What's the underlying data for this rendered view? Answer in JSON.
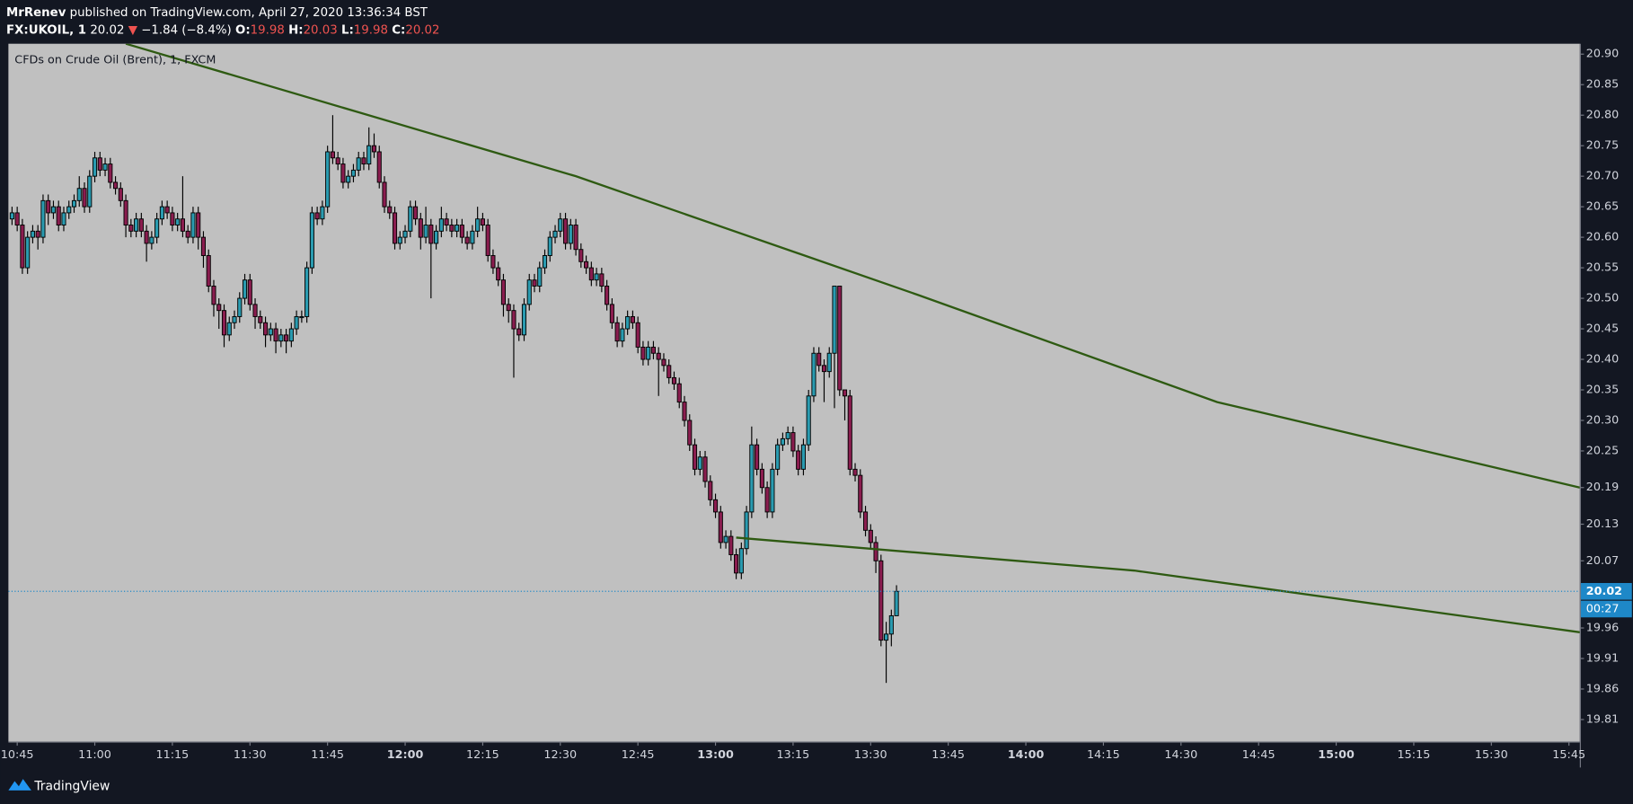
{
  "header": {
    "author": "MrRenev",
    "published": "published on TradingView.com, April 27, 2020 13:36:34 BST",
    "symbol": "FX:UKOIL, 1",
    "last": "20.02",
    "arrow": "▼",
    "change": "−1.84 (−8.4%)",
    "ohlc": [
      {
        "label": "O:",
        "value": "19.98"
      },
      {
        "label": "H:",
        "value": "20.03"
      },
      {
        "label": "L:",
        "value": "19.98"
      },
      {
        "label": "C:",
        "value": "20.02"
      }
    ]
  },
  "footer": {
    "brand": "TradingView"
  },
  "chart_data": {
    "type": "candlestick",
    "title": "CFDs on Crude Oil (Brent), 1, FXCM",
    "up_color": "#2a9bb0",
    "down_color": "#8a1d4f",
    "price_line_color": "#1e88c8",
    "xlim": [
      643.3,
      947.1
    ],
    "xticks": [
      {
        "value": 645,
        "label": "10:45"
      },
      {
        "value": 660,
        "label": "11:00"
      },
      {
        "value": 675,
        "label": "11:15"
      },
      {
        "value": 690,
        "label": "11:30"
      },
      {
        "value": 705,
        "label": "11:45"
      },
      {
        "value": 720,
        "label": "12:00"
      },
      {
        "value": 735,
        "label": "12:15"
      },
      {
        "value": 750,
        "label": "12:30"
      },
      {
        "value": 765,
        "label": "12:45"
      },
      {
        "value": 780,
        "label": "13:00"
      },
      {
        "value": 795,
        "label": "13:15"
      },
      {
        "value": 810,
        "label": "13:30"
      },
      {
        "value": 825,
        "label": "13:45"
      },
      {
        "value": 840,
        "label": "14:00"
      },
      {
        "value": 855,
        "label": "14:15"
      },
      {
        "value": 870,
        "label": "14:30"
      },
      {
        "value": 885,
        "label": "14:45"
      },
      {
        "value": 900,
        "label": "15:00"
      },
      {
        "value": 915,
        "label": "15:15"
      },
      {
        "value": 930,
        "label": "15:30"
      },
      {
        "value": 945,
        "label": "15:45"
      }
    ],
    "ylim": [
      19.774,
      20.917
    ],
    "yticks": [
      {
        "value": 20.9,
        "label": "20.90"
      },
      20.85,
      {
        "value": 20.8,
        "label": "20.80"
      },
      20.75,
      {
        "value": 20.7,
        "label": "20.70"
      },
      20.65,
      {
        "value": 20.6,
        "label": "20.60"
      },
      20.55,
      {
        "value": 20.5,
        "label": "20.50"
      },
      20.45,
      {
        "value": 20.4,
        "label": "20.40"
      },
      20.35,
      {
        "value": 20.3,
        "label": "20.30"
      },
      20.25,
      20.19,
      20.13,
      20.07,
      19.96,
      19.91,
      19.86,
      19.81
    ],
    "last_price": 20.02,
    "countdown": "00:27",
    "candles": [
      [
        644,
        20.63,
        20.65,
        20.62,
        20.64
      ],
      [
        645,
        20.64,
        20.65,
        20.61,
        20.62
      ],
      [
        646,
        20.62,
        20.63,
        20.54,
        20.55
      ],
      [
        647,
        20.55,
        20.61,
        20.54,
        20.6
      ],
      [
        648,
        20.6,
        20.62,
        20.59,
        20.61
      ],
      [
        649,
        20.61,
        20.62,
        20.58,
        20.6
      ],
      [
        650,
        20.6,
        20.67,
        20.59,
        20.66
      ],
      [
        651,
        20.66,
        20.67,
        20.62,
        20.64
      ],
      [
        652,
        20.64,
        20.66,
        20.63,
        20.65
      ],
      [
        653,
        20.65,
        20.66,
        20.61,
        20.62
      ],
      [
        654,
        20.62,
        20.65,
        20.61,
        20.64
      ],
      [
        655,
        20.64,
        20.66,
        20.63,
        20.65
      ],
      [
        656,
        20.65,
        20.67,
        20.64,
        20.66
      ],
      [
        657,
        20.66,
        20.7,
        20.65,
        20.68
      ],
      [
        658,
        20.68,
        20.69,
        20.64,
        20.65
      ],
      [
        659,
        20.65,
        20.71,
        20.64,
        20.7
      ],
      [
        660,
        20.7,
        20.74,
        20.69,
        20.73
      ],
      [
        661,
        20.73,
        20.74,
        20.7,
        20.71
      ],
      [
        662,
        20.71,
        20.73,
        20.7,
        20.72
      ],
      [
        663,
        20.72,
        20.73,
        20.68,
        20.69
      ],
      [
        664,
        20.69,
        20.7,
        20.67,
        20.68
      ],
      [
        665,
        20.68,
        20.69,
        20.65,
        20.66
      ],
      [
        666,
        20.66,
        20.67,
        20.6,
        20.62
      ],
      [
        667,
        20.62,
        20.63,
        20.6,
        20.61
      ],
      [
        668,
        20.61,
        20.64,
        20.6,
        20.63
      ],
      [
        669,
        20.63,
        20.64,
        20.6,
        20.61
      ],
      [
        670,
        20.61,
        20.62,
        20.56,
        20.59
      ],
      [
        671,
        20.59,
        20.61,
        20.58,
        20.6
      ],
      [
        672,
        20.6,
        20.64,
        20.59,
        20.63
      ],
      [
        673,
        20.63,
        20.66,
        20.62,
        20.65
      ],
      [
        674,
        20.65,
        20.66,
        20.63,
        20.64
      ],
      [
        675,
        20.64,
        20.65,
        20.61,
        20.62
      ],
      [
        676,
        20.62,
        20.64,
        20.61,
        20.63
      ],
      [
        677,
        20.63,
        20.7,
        20.6,
        20.61
      ],
      [
        678,
        20.61,
        20.62,
        20.59,
        20.6
      ],
      [
        679,
        20.6,
        20.65,
        20.59,
        20.64
      ],
      [
        680,
        20.64,
        20.65,
        20.58,
        20.6
      ],
      [
        681,
        20.6,
        20.61,
        20.55,
        20.57
      ],
      [
        682,
        20.57,
        20.58,
        20.51,
        20.52
      ],
      [
        683,
        20.52,
        20.53,
        20.47,
        20.49
      ],
      [
        684,
        20.49,
        20.5,
        20.45,
        20.48
      ],
      [
        685,
        20.48,
        20.49,
        20.42,
        20.44
      ],
      [
        686,
        20.44,
        20.47,
        20.43,
        20.46
      ],
      [
        687,
        20.46,
        20.48,
        20.45,
        20.47
      ],
      [
        688,
        20.47,
        20.51,
        20.46,
        20.5
      ],
      [
        689,
        20.5,
        20.54,
        20.49,
        20.53
      ],
      [
        690,
        20.53,
        20.54,
        20.48,
        20.49
      ],
      [
        691,
        20.49,
        20.5,
        20.45,
        20.47
      ],
      [
        692,
        20.47,
        20.48,
        20.45,
        20.46
      ],
      [
        693,
        20.46,
        20.47,
        20.42,
        20.44
      ],
      [
        694,
        20.44,
        20.46,
        20.43,
        20.45
      ],
      [
        695,
        20.45,
        20.46,
        20.41,
        20.43
      ],
      [
        696,
        20.43,
        20.45,
        20.42,
        20.44
      ],
      [
        697,
        20.44,
        20.45,
        20.41,
        20.43
      ],
      [
        698,
        20.43,
        20.46,
        20.42,
        20.45
      ],
      [
        699,
        20.45,
        20.48,
        20.44,
        20.47
      ],
      [
        700,
        20.47,
        20.48,
        20.46,
        20.47
      ],
      [
        701,
        20.47,
        20.56,
        20.46,
        20.55
      ],
      [
        702,
        20.55,
        20.65,
        20.54,
        20.64
      ],
      [
        703,
        20.64,
        20.65,
        20.62,
        20.63
      ],
      [
        704,
        20.63,
        20.66,
        20.62,
        20.65
      ],
      [
        705,
        20.65,
        20.75,
        20.64,
        20.74
      ],
      [
        706,
        20.74,
        20.8,
        20.72,
        20.73
      ],
      [
        707,
        20.73,
        20.74,
        20.71,
        20.72
      ],
      [
        708,
        20.72,
        20.73,
        20.68,
        20.69
      ],
      [
        709,
        20.69,
        20.71,
        20.68,
        20.7
      ],
      [
        710,
        20.7,
        20.72,
        20.69,
        20.71
      ],
      [
        711,
        20.71,
        20.74,
        20.7,
        20.73
      ],
      [
        712,
        20.73,
        20.74,
        20.71,
        20.72
      ],
      [
        713,
        20.72,
        20.78,
        20.71,
        20.75
      ],
      [
        714,
        20.75,
        20.77,
        20.73,
        20.74
      ],
      [
        715,
        20.74,
        20.75,
        20.68,
        20.69
      ],
      [
        716,
        20.69,
        20.7,
        20.64,
        20.65
      ],
      [
        717,
        20.65,
        20.66,
        20.63,
        20.64
      ],
      [
        718,
        20.64,
        20.65,
        20.58,
        20.59
      ],
      [
        719,
        20.59,
        20.61,
        20.58,
        20.6
      ],
      [
        720,
        20.6,
        20.62,
        20.59,
        20.61
      ],
      [
        721,
        20.61,
        20.66,
        20.6,
        20.65
      ],
      [
        722,
        20.65,
        20.66,
        20.62,
        20.63
      ],
      [
        723,
        20.63,
        20.64,
        20.58,
        20.6
      ],
      [
        724,
        20.6,
        20.65,
        20.59,
        20.62
      ],
      [
        725,
        20.62,
        20.63,
        20.5,
        20.59
      ],
      [
        726,
        20.59,
        20.62,
        20.58,
        20.61
      ],
      [
        727,
        20.61,
        20.65,
        20.6,
        20.63
      ],
      [
        728,
        20.63,
        20.64,
        20.61,
        20.62
      ],
      [
        729,
        20.62,
        20.63,
        20.6,
        20.61
      ],
      [
        730,
        20.61,
        20.63,
        20.6,
        20.62
      ],
      [
        731,
        20.62,
        20.63,
        20.59,
        20.6
      ],
      [
        732,
        20.6,
        20.61,
        20.58,
        20.59
      ],
      [
        733,
        20.59,
        20.62,
        20.58,
        20.61
      ],
      [
        734,
        20.61,
        20.65,
        20.6,
        20.63
      ],
      [
        735,
        20.63,
        20.64,
        20.61,
        20.62
      ],
      [
        736,
        20.62,
        20.63,
        20.56,
        20.57
      ],
      [
        737,
        20.57,
        20.58,
        20.54,
        20.55
      ],
      [
        738,
        20.55,
        20.56,
        20.52,
        20.53
      ],
      [
        739,
        20.53,
        20.54,
        20.47,
        20.49
      ],
      [
        740,
        20.49,
        20.5,
        20.46,
        20.48
      ],
      [
        741,
        20.48,
        20.49,
        20.37,
        20.45
      ],
      [
        742,
        20.45,
        20.46,
        20.43,
        20.44
      ],
      [
        743,
        20.44,
        20.5,
        20.43,
        20.49
      ],
      [
        744,
        20.49,
        20.54,
        20.48,
        20.53
      ],
      [
        745,
        20.53,
        20.54,
        20.51,
        20.52
      ],
      [
        746,
        20.52,
        20.56,
        20.51,
        20.55
      ],
      [
        747,
        20.55,
        20.58,
        20.54,
        20.57
      ],
      [
        748,
        20.57,
        20.61,
        20.56,
        20.6
      ],
      [
        749,
        20.6,
        20.62,
        20.59,
        20.61
      ],
      [
        750,
        20.61,
        20.64,
        20.6,
        20.63
      ],
      [
        751,
        20.63,
        20.64,
        20.58,
        20.59
      ],
      [
        752,
        20.59,
        20.63,
        20.58,
        20.62
      ],
      [
        753,
        20.62,
        20.63,
        20.57,
        20.58
      ],
      [
        754,
        20.58,
        20.59,
        20.55,
        20.56
      ],
      [
        755,
        20.56,
        20.57,
        20.54,
        20.55
      ],
      [
        756,
        20.55,
        20.56,
        20.52,
        20.53
      ],
      [
        757,
        20.53,
        20.55,
        20.52,
        20.54
      ],
      [
        758,
        20.54,
        20.55,
        20.51,
        20.52
      ],
      [
        759,
        20.52,
        20.53,
        20.48,
        20.49
      ],
      [
        760,
        20.49,
        20.5,
        20.45,
        20.46
      ],
      [
        761,
        20.46,
        20.47,
        20.42,
        20.43
      ],
      [
        762,
        20.43,
        20.46,
        20.42,
        20.45
      ],
      [
        763,
        20.45,
        20.48,
        20.44,
        20.47
      ],
      [
        764,
        20.47,
        20.48,
        20.45,
        20.46
      ],
      [
        765,
        20.46,
        20.47,
        20.41,
        20.42
      ],
      [
        766,
        20.42,
        20.43,
        20.39,
        20.4
      ],
      [
        767,
        20.4,
        20.43,
        20.39,
        20.42
      ],
      [
        768,
        20.42,
        20.43,
        20.4,
        20.41
      ],
      [
        769,
        20.41,
        20.42,
        20.34,
        20.4
      ],
      [
        770,
        20.4,
        20.41,
        20.38,
        20.39
      ],
      [
        771,
        20.39,
        20.4,
        20.36,
        20.37
      ],
      [
        772,
        20.37,
        20.38,
        20.35,
        20.36
      ],
      [
        773,
        20.36,
        20.37,
        20.32,
        20.33
      ],
      [
        774,
        20.33,
        20.34,
        20.29,
        20.3
      ],
      [
        775,
        20.3,
        20.31,
        20.25,
        20.26
      ],
      [
        776,
        20.26,
        20.27,
        20.21,
        20.22
      ],
      [
        777,
        20.22,
        20.25,
        20.21,
        20.24
      ],
      [
        778,
        20.24,
        20.25,
        20.19,
        20.2
      ],
      [
        779,
        20.2,
        20.21,
        20.16,
        20.17
      ],
      [
        780,
        20.17,
        20.18,
        20.14,
        20.15
      ],
      [
        781,
        20.15,
        20.16,
        20.09,
        20.1
      ],
      [
        782,
        20.1,
        20.12,
        20.09,
        20.11
      ],
      [
        783,
        20.11,
        20.12,
        20.07,
        20.08
      ],
      [
        784,
        20.08,
        20.09,
        20.04,
        20.05
      ],
      [
        785,
        20.05,
        20.1,
        20.04,
        20.09
      ],
      [
        786,
        20.09,
        20.16,
        20.08,
        20.15
      ],
      [
        787,
        20.15,
        20.29,
        20.14,
        20.26
      ],
      [
        788,
        20.26,
        20.27,
        20.21,
        20.22
      ],
      [
        789,
        20.22,
        20.23,
        20.18,
        20.19
      ],
      [
        790,
        20.19,
        20.2,
        20.14,
        20.15
      ],
      [
        791,
        20.15,
        20.23,
        20.14,
        20.22
      ],
      [
        792,
        20.22,
        20.27,
        20.21,
        20.26
      ],
      [
        793,
        20.26,
        20.28,
        20.25,
        20.27
      ],
      [
        794,
        20.27,
        20.29,
        20.26,
        20.28
      ],
      [
        795,
        20.28,
        20.29,
        20.24,
        20.25
      ],
      [
        796,
        20.25,
        20.26,
        20.21,
        20.22
      ],
      [
        797,
        20.22,
        20.27,
        20.21,
        20.26
      ],
      [
        798,
        20.26,
        20.35,
        20.25,
        20.34
      ],
      [
        799,
        20.34,
        20.42,
        20.33,
        20.41
      ],
      [
        800,
        20.41,
        20.42,
        20.38,
        20.39
      ],
      [
        801,
        20.39,
        20.4,
        20.33,
        20.38
      ],
      [
        802,
        20.38,
        20.42,
        20.37,
        20.41
      ],
      [
        803,
        20.41,
        20.52,
        20.32,
        20.52
      ],
      [
        804,
        20.52,
        20.52,
        20.34,
        20.35
      ],
      [
        805,
        20.35,
        20.35,
        20.3,
        20.34
      ],
      [
        806,
        20.34,
        20.35,
        20.21,
        20.22
      ],
      [
        807,
        20.22,
        20.23,
        20.2,
        20.21
      ],
      [
        808,
        20.21,
        20.22,
        20.14,
        20.15
      ],
      [
        809,
        20.15,
        20.16,
        20.11,
        20.12
      ],
      [
        810,
        20.12,
        20.13,
        20.09,
        20.1
      ],
      [
        811,
        20.1,
        20.11,
        20.05,
        20.07
      ],
      [
        812,
        20.07,
        20.08,
        19.93,
        19.94
      ],
      [
        813,
        19.94,
        19.97,
        19.87,
        19.95
      ],
      [
        814,
        19.95,
        19.99,
        19.93,
        19.98
      ],
      [
        815,
        19.98,
        20.03,
        19.98,
        20.02
      ]
    ],
    "trendlines": [
      {
        "color": "#2e5a12",
        "points": [
          [
            666,
            20.917
          ],
          [
            753,
            20.7
          ],
          [
            819,
            20.506
          ],
          [
            877,
            20.33
          ],
          [
            947.1,
            20.19
          ]
        ]
      },
      {
        "color": "#2e5a12",
        "points": [
          [
            784,
            20.108
          ],
          [
            861,
            20.054
          ],
          [
            947.1,
            19.953
          ]
        ]
      }
    ]
  }
}
